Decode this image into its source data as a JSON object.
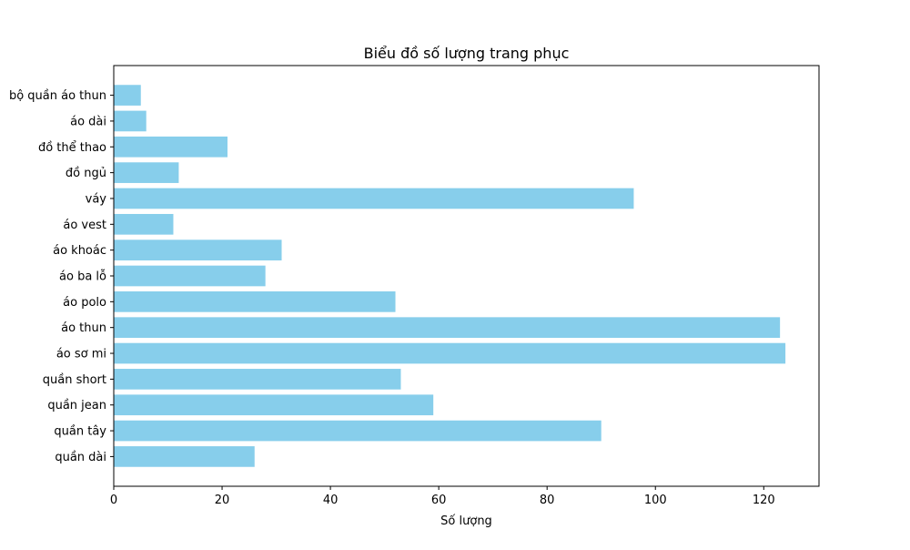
{
  "chart_data": {
    "type": "bar",
    "orientation": "horizontal",
    "title": "Biểu đồ số lượng trang phục",
    "xlabel": "Số lượng",
    "ylabel": "",
    "xlim": [
      0,
      130.2
    ],
    "xticks": [
      0,
      20,
      40,
      60,
      80,
      100,
      120
    ],
    "xtick_labels": [
      "0",
      "20",
      "40",
      "60",
      "80",
      "100",
      "120"
    ],
    "categories": [
      "quần dài",
      "quần tây",
      "quần jean",
      "quần short",
      "áo sơ mi",
      "áo thun",
      "áo polo",
      "áo ba lỗ",
      "áo khoác",
      "áo vest",
      "váy",
      "đồ ngủ",
      "đồ thể thao",
      "áo dài",
      "bộ quần áo thun"
    ],
    "values": [
      26,
      90,
      59,
      53,
      124,
      123,
      52,
      28,
      31,
      11,
      96,
      12,
      21,
      6,
      5
    ],
    "bar_color": "#87ceeb",
    "grid": false,
    "legend": "none"
  }
}
